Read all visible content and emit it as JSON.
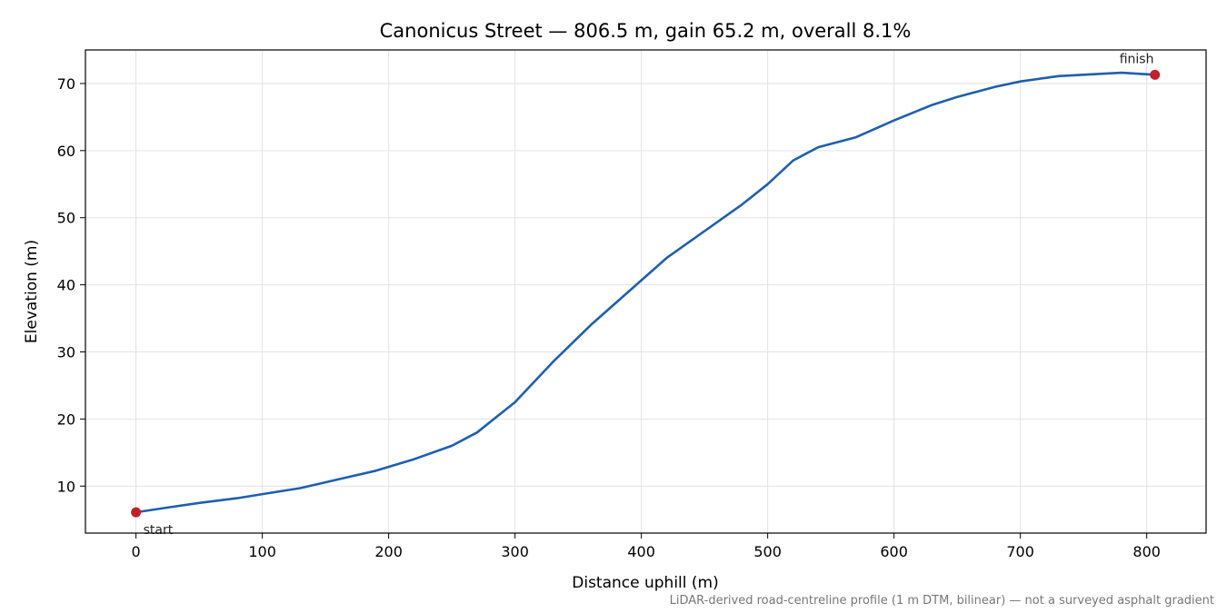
{
  "chart_data": {
    "type": "line",
    "title": "Canonicus Street — 806.5 m, gain 65.2 m, overall 8.1%",
    "xlabel": "Distance uphill (m)",
    "ylabel": "Elevation (m)",
    "xlim": [
      -40,
      847
    ],
    "ylim": [
      3,
      75
    ],
    "xticks": [
      0,
      100,
      200,
      300,
      400,
      500,
      600,
      700,
      800
    ],
    "yticks": [
      10,
      20,
      30,
      40,
      50,
      60,
      70
    ],
    "grid": true,
    "line_color": "#1f5fad",
    "marker_color": "#c0202a",
    "series": [
      {
        "x": [
          0,
          25,
          50,
          80,
          100,
          130,
          160,
          190,
          220,
          250,
          270,
          300,
          330,
          360,
          390,
          420,
          450,
          480,
          500,
          520,
          540,
          570,
          600,
          630,
          650,
          680,
          700,
          730,
          760,
          780,
          806.5
        ],
        "y": [
          6.1,
          6.8,
          7.5,
          8.2,
          8.8,
          9.7,
          11.0,
          12.3,
          14.0,
          16.0,
          18.0,
          22.5,
          28.5,
          34.0,
          39.0,
          44.0,
          48.0,
          52.0,
          55.0,
          58.5,
          60.5,
          62.0,
          64.5,
          66.8,
          68.0,
          69.5,
          70.3,
          71.1,
          71.4,
          71.6,
          71.3
        ]
      }
    ],
    "points": [
      {
        "label": "start",
        "x": 0,
        "y": 6.1
      },
      {
        "label": "finish",
        "x": 806.5,
        "y": 71.3
      }
    ],
    "footnote": "LiDAR-derived road-centreline profile (1 m DTM, bilinear) — not a surveyed asphalt gradient"
  }
}
